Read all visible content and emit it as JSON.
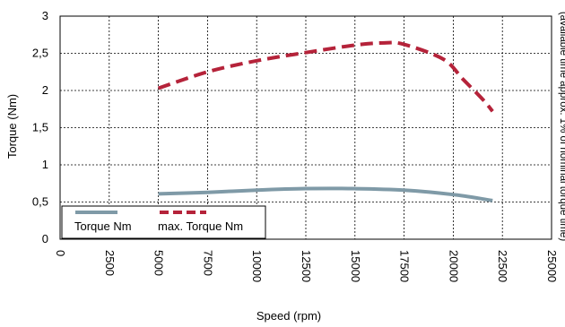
{
  "chart_data": {
    "type": "line",
    "xlabel": "Speed (rpm)",
    "ylabel": "Torque (Nm)",
    "right_note": "(available time approx. 1% of nominal torque time)",
    "xlim": [
      0,
      25000
    ],
    "ylim": [
      0,
      3
    ],
    "x_ticks": [
      0,
      2500,
      5000,
      7500,
      10000,
      12500,
      15000,
      17500,
      20000,
      22500,
      25000
    ],
    "x_tick_labels": [
      "0",
      "2500",
      "5000",
      "7500",
      "10000",
      "12500",
      "15000",
      "17500",
      "20000",
      "22500",
      "25000"
    ],
    "y_ticks": [
      0,
      0.5,
      1,
      1.5,
      2,
      2.5,
      3
    ],
    "y_tick_labels": [
      "0",
      "0,5",
      "1",
      "1,5",
      "2",
      "2,5",
      "3"
    ],
    "grid": true,
    "legend_position": "bottom-left",
    "series": [
      {
        "name": "Torque Nm",
        "color": "#7f9aa7",
        "style": "solid",
        "points": [
          [
            5000,
            0.61
          ],
          [
            7500,
            0.63
          ],
          [
            10000,
            0.66
          ],
          [
            12500,
            0.68
          ],
          [
            15000,
            0.68
          ],
          [
            17500,
            0.66
          ],
          [
            20000,
            0.6
          ],
          [
            22000,
            0.52
          ]
        ]
      },
      {
        "name": "max. Torque Nm",
        "color": "#b5233a",
        "style": "dashed",
        "points": [
          [
            5000,
            2.03
          ],
          [
            7500,
            2.25
          ],
          [
            10000,
            2.4
          ],
          [
            12500,
            2.51
          ],
          [
            15000,
            2.61
          ],
          [
            16500,
            2.64
          ],
          [
            17500,
            2.62
          ],
          [
            19500,
            2.42
          ],
          [
            20500,
            2.15
          ],
          [
            21500,
            1.88
          ],
          [
            22000,
            1.72
          ]
        ]
      }
    ]
  }
}
